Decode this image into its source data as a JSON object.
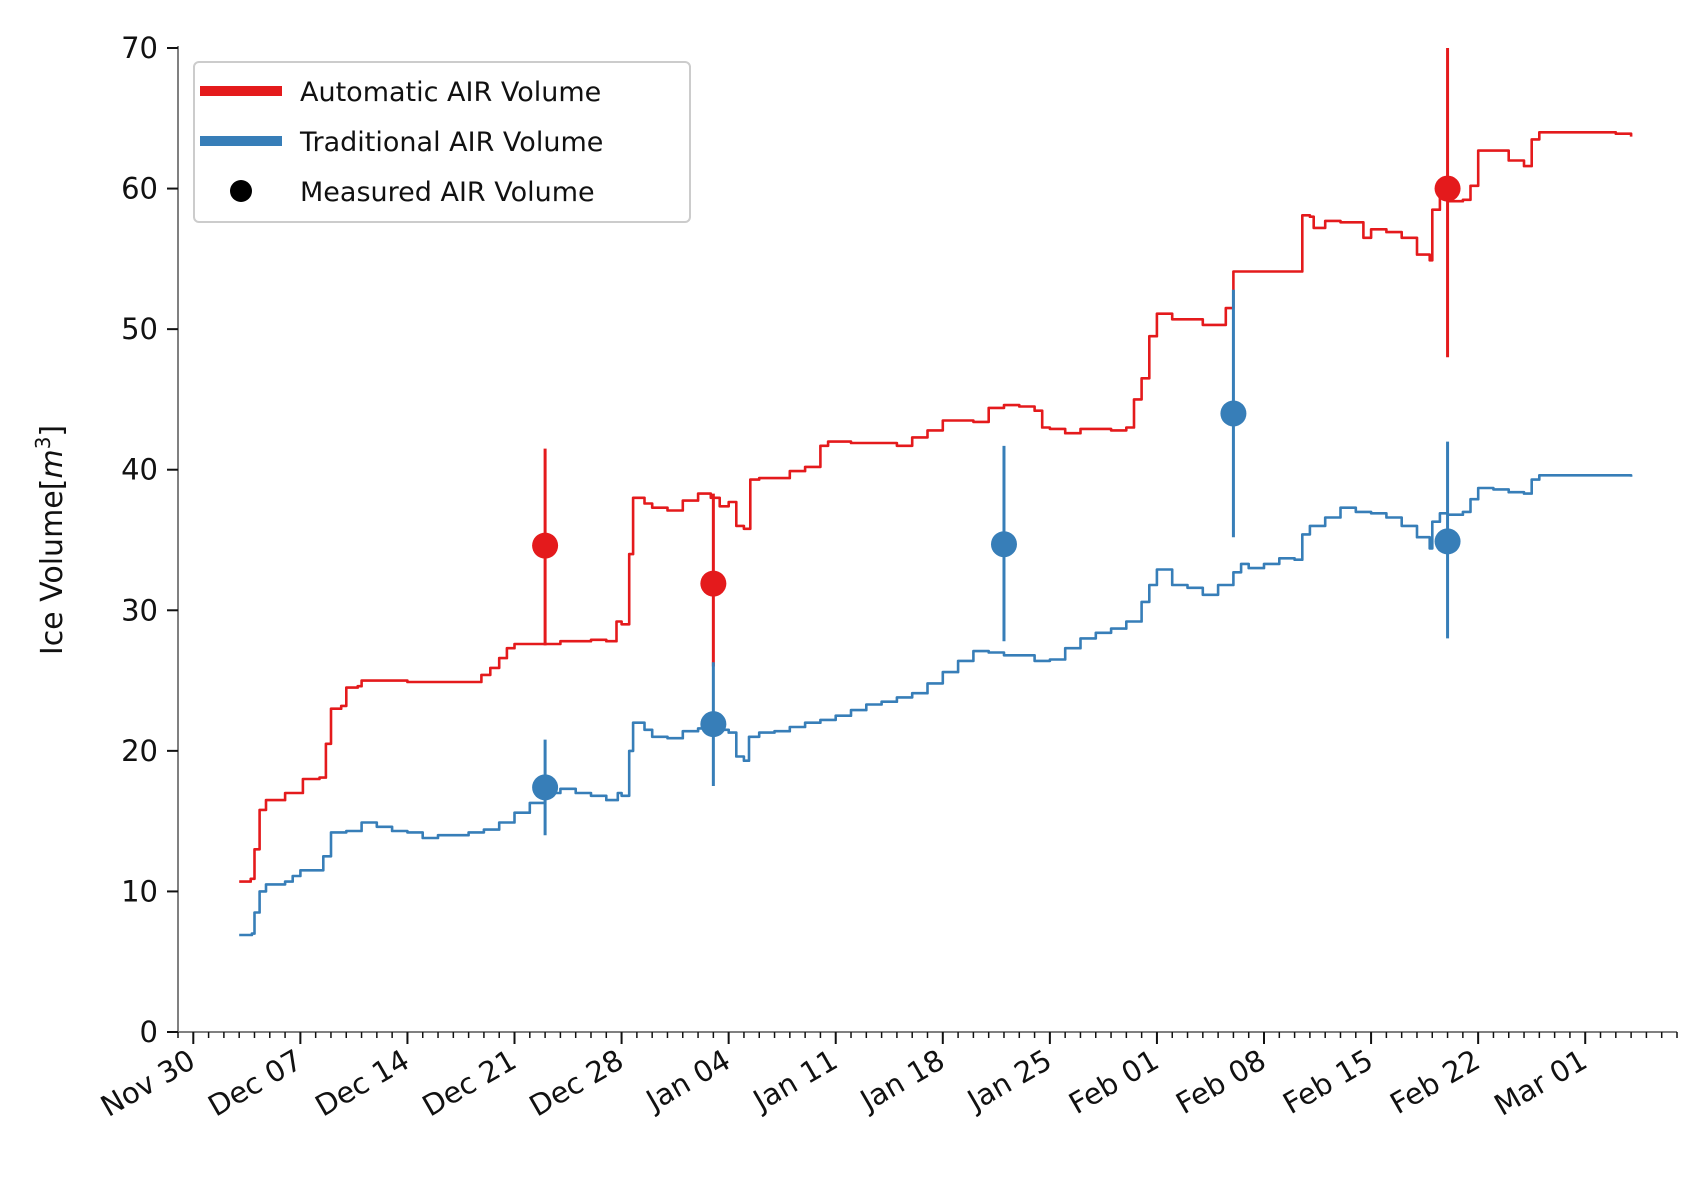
{
  "chart_data": {
    "type": "line",
    "title": "",
    "xlabel": "",
    "ylabel": "Ice Volume[",
    "ylabel_math": "m",
    "ylabel_sup": "3",
    "ylabel_close": "]",
    "ylim": [
      0,
      70
    ],
    "xlim": [
      "2020-11-29",
      "2021-03-07"
    ],
    "yticks": [
      0,
      10,
      20,
      30,
      40,
      50,
      60,
      70
    ],
    "xticks": [
      {
        "date": "2020-11-30",
        "label": "Nov 30"
      },
      {
        "date": "2020-12-07",
        "label": "Dec 07"
      },
      {
        "date": "2020-12-14",
        "label": "Dec 14"
      },
      {
        "date": "2020-12-21",
        "label": "Dec 21"
      },
      {
        "date": "2020-12-28",
        "label": "Dec 28"
      },
      {
        "date": "2021-01-04",
        "label": "Jan 04"
      },
      {
        "date": "2021-01-11",
        "label": "Jan 11"
      },
      {
        "date": "2021-01-18",
        "label": "Jan 18"
      },
      {
        "date": "2021-01-25",
        "label": "Jan 25"
      },
      {
        "date": "2021-02-01",
        "label": "Feb 01"
      },
      {
        "date": "2021-02-08",
        "label": "Feb 08"
      },
      {
        "date": "2021-02-15",
        "label": "Feb 15"
      },
      {
        "date": "2021-02-22",
        "label": "Feb 22"
      },
      {
        "date": "2021-03-01",
        "label": "Mar 01"
      }
    ],
    "grid": false,
    "legend_position": "top-left",
    "series": [
      {
        "name": "Automatic AIR Volume",
        "color": "#e41a1c",
        "step": true,
        "points": [
          [
            "2020-12-03",
            10.7
          ],
          [
            "2020-12-03 18:00",
            10.9
          ],
          [
            "2020-12-04",
            13
          ],
          [
            "2020-12-04 08:00",
            15.8
          ],
          [
            "2020-12-04 18:00",
            16.5
          ],
          [
            "2020-12-05 20:00",
            16.5
          ],
          [
            "2020-12-06",
            17
          ],
          [
            "2020-12-06 18:00",
            17
          ],
          [
            "2020-12-07 04:00",
            18
          ],
          [
            "2020-12-08 06:00",
            18.1
          ],
          [
            "2020-12-08 16:00",
            20.5
          ],
          [
            "2020-12-09",
            23
          ],
          [
            "2020-12-09 16:00",
            23.2
          ],
          [
            "2020-12-10",
            24.5
          ],
          [
            "2020-12-10 18:00",
            24.6
          ],
          [
            "2020-12-11",
            25
          ],
          [
            "2020-12-12",
            25
          ],
          [
            "2020-12-14",
            24.9
          ],
          [
            "2020-12-16",
            24.9
          ],
          [
            "2020-12-18",
            24.9
          ],
          [
            "2020-12-18 20:00",
            25.4
          ],
          [
            "2020-12-19 10:00",
            25.9
          ],
          [
            "2020-12-20",
            26.6
          ],
          [
            "2020-12-20 12:00",
            27.3
          ],
          [
            "2020-12-21",
            27.6
          ],
          [
            "2020-12-23",
            27.6
          ],
          [
            "2020-12-24",
            27.8
          ],
          [
            "2020-12-25",
            27.8
          ],
          [
            "2020-12-26",
            27.9
          ],
          [
            "2020-12-27",
            27.8
          ],
          [
            "2020-12-27 16:00",
            29.2
          ],
          [
            "2020-12-28",
            29
          ],
          [
            "2020-12-28 12:00",
            34
          ],
          [
            "2020-12-28 18:00",
            38
          ],
          [
            "2020-12-29 12:00",
            37.6
          ],
          [
            "2020-12-30",
            37.3
          ],
          [
            "2020-12-31",
            37.1
          ],
          [
            "2021-01-01",
            37.8
          ],
          [
            "2021-01-02",
            38.3
          ],
          [
            "2021-01-02 20:00",
            38
          ],
          [
            "2021-01-03 10:00",
            37.4
          ],
          [
            "2021-01-04",
            37.7
          ],
          [
            "2021-01-04 12:00",
            36
          ],
          [
            "2021-01-05",
            35.8
          ],
          [
            "2021-01-05 10:00",
            39.3
          ],
          [
            "2021-01-06",
            39.4
          ],
          [
            "2021-01-07",
            39.4
          ],
          [
            "2021-01-08",
            39.9
          ],
          [
            "2021-01-09",
            40.2
          ],
          [
            "2021-01-10",
            41.7
          ],
          [
            "2021-01-10 12:00",
            42
          ],
          [
            "2021-01-12",
            41.9
          ],
          [
            "2021-01-14",
            41.9
          ],
          [
            "2021-01-15",
            41.7
          ],
          [
            "2021-01-16",
            42.3
          ],
          [
            "2021-01-17",
            42.8
          ],
          [
            "2021-01-18",
            43.5
          ],
          [
            "2021-01-19",
            43.5
          ],
          [
            "2021-01-20",
            43.4
          ],
          [
            "2021-01-21",
            44.4
          ],
          [
            "2021-01-22",
            44.6
          ],
          [
            "2021-01-23",
            44.5
          ],
          [
            "2021-01-24",
            44.2
          ],
          [
            "2021-01-24 12:00",
            43
          ],
          [
            "2021-01-25",
            42.9
          ],
          [
            "2021-01-26",
            42.6
          ],
          [
            "2021-01-27",
            42.9
          ],
          [
            "2021-01-28",
            42.9
          ],
          [
            "2021-01-29",
            42.8
          ],
          [
            "2021-01-30",
            43
          ],
          [
            "2021-01-30 12:00",
            45
          ],
          [
            "2021-01-31",
            46.5
          ],
          [
            "2021-01-31 12:00",
            49.5
          ],
          [
            "2021-02-01",
            51.1
          ],
          [
            "2021-02-02",
            50.7
          ],
          [
            "2021-02-03",
            50.7
          ],
          [
            "2021-02-04",
            50.3
          ],
          [
            "2021-02-05",
            50.3
          ],
          [
            "2021-02-05 12:00",
            51.5
          ],
          [
            "2021-02-06",
            54.1
          ],
          [
            "2021-02-08",
            54.1
          ],
          [
            "2021-02-09",
            54.1
          ],
          [
            "2021-02-10",
            54.1
          ],
          [
            "2021-02-10 12:00",
            58.1
          ],
          [
            "2021-02-11",
            58
          ],
          [
            "2021-02-11 06:00",
            57.2
          ],
          [
            "2021-02-12",
            57.7
          ],
          [
            "2021-02-13",
            57.6
          ],
          [
            "2021-02-14",
            57.6
          ],
          [
            "2021-02-14 12:00",
            56.5
          ],
          [
            "2021-02-15",
            57.1
          ],
          [
            "2021-02-16",
            56.9
          ],
          [
            "2021-02-17",
            56.5
          ],
          [
            "2021-02-18",
            55.3
          ],
          [
            "2021-02-18 20:00",
            54.9
          ],
          [
            "2021-02-19",
            58.5
          ],
          [
            "2021-02-19 12:00",
            59.5
          ],
          [
            "2021-02-20",
            59.1
          ],
          [
            "2021-02-21",
            59.2
          ],
          [
            "2021-02-21 12:00",
            60.2
          ],
          [
            "2021-02-22",
            62.7
          ],
          [
            "2021-02-23",
            62.7
          ],
          [
            "2021-02-24",
            62
          ],
          [
            "2021-02-25",
            61.6
          ],
          [
            "2021-02-25 12:00",
            63.5
          ],
          [
            "2021-02-26",
            64
          ],
          [
            "2021-02-28",
            64
          ],
          [
            "2021-03-02",
            64
          ],
          [
            "2021-03-03",
            63.9
          ],
          [
            "2021-03-04",
            63.7
          ]
        ]
      },
      {
        "name": "Traditional AIR Volume",
        "color": "#377eb8",
        "step": true,
        "points": [
          [
            "2020-12-03",
            6.9
          ],
          [
            "2020-12-03 20:00",
            7
          ],
          [
            "2020-12-04",
            8.5
          ],
          [
            "2020-12-04 08:00",
            10
          ],
          [
            "2020-12-04 18:00",
            10.5
          ],
          [
            "2020-12-05 12:00",
            10.5
          ],
          [
            "2020-12-06",
            10.7
          ],
          [
            "2020-12-06 12:00",
            11.1
          ],
          [
            "2020-12-07",
            11.5
          ],
          [
            "2020-12-08",
            11.5
          ],
          [
            "2020-12-08 12:00",
            12.5
          ],
          [
            "2020-12-09",
            14.2
          ],
          [
            "2020-12-10",
            14.3
          ],
          [
            "2020-12-11",
            14.9
          ],
          [
            "2020-12-12",
            14.6
          ],
          [
            "2020-12-13",
            14.3
          ],
          [
            "2020-12-14",
            14.2
          ],
          [
            "2020-12-15",
            13.8
          ],
          [
            "2020-12-16",
            14
          ],
          [
            "2020-12-17",
            14
          ],
          [
            "2020-12-18",
            14.2
          ],
          [
            "2020-12-19",
            14.4
          ],
          [
            "2020-12-20",
            14.9
          ],
          [
            "2020-12-21",
            15.6
          ],
          [
            "2020-12-22",
            16.3
          ],
          [
            "2020-12-23",
            17
          ],
          [
            "2020-12-24",
            17.3
          ],
          [
            "2020-12-25",
            17
          ],
          [
            "2020-12-26",
            16.8
          ],
          [
            "2020-12-27",
            16.5
          ],
          [
            "2020-12-27 18:00",
            17
          ],
          [
            "2020-12-28",
            16.8
          ],
          [
            "2020-12-28 12:00",
            20
          ],
          [
            "2020-12-28 18:00",
            22
          ],
          [
            "2020-12-29 12:00",
            21.5
          ],
          [
            "2020-12-30",
            21
          ],
          [
            "2020-12-31",
            20.9
          ],
          [
            "2021-01-01",
            21.4
          ],
          [
            "2021-01-02",
            21.6
          ],
          [
            "2021-01-03",
            21.5
          ],
          [
            "2021-01-04",
            21.3
          ],
          [
            "2021-01-04 12:00",
            19.6
          ],
          [
            "2021-01-05",
            19.3
          ],
          [
            "2021-01-05 08:00",
            21
          ],
          [
            "2021-01-06",
            21.3
          ],
          [
            "2021-01-07",
            21.4
          ],
          [
            "2021-01-08",
            21.7
          ],
          [
            "2021-01-09",
            22
          ],
          [
            "2021-01-10",
            22.2
          ],
          [
            "2021-01-11",
            22.5
          ],
          [
            "2021-01-12",
            22.9
          ],
          [
            "2021-01-13",
            23.3
          ],
          [
            "2021-01-14",
            23.5
          ],
          [
            "2021-01-15",
            23.8
          ],
          [
            "2021-01-16",
            24.1
          ],
          [
            "2021-01-17",
            24.8
          ],
          [
            "2021-01-18",
            25.6
          ],
          [
            "2021-01-19",
            26.4
          ],
          [
            "2021-01-20",
            27.1
          ],
          [
            "2021-01-21",
            27
          ],
          [
            "2021-01-22",
            26.8
          ],
          [
            "2021-01-23",
            26.8
          ],
          [
            "2021-01-24",
            26.4
          ],
          [
            "2021-01-25",
            26.5
          ],
          [
            "2021-01-26",
            27.3
          ],
          [
            "2021-01-27",
            28
          ],
          [
            "2021-01-28",
            28.4
          ],
          [
            "2021-01-29",
            28.7
          ],
          [
            "2021-01-30",
            29.2
          ],
          [
            "2021-01-31",
            30.6
          ],
          [
            "2021-01-31 12:00",
            31.8
          ],
          [
            "2021-02-01",
            32.9
          ],
          [
            "2021-02-02",
            31.8
          ],
          [
            "2021-02-03",
            31.6
          ],
          [
            "2021-02-04",
            31.1
          ],
          [
            "2021-02-05",
            31.8
          ],
          [
            "2021-02-06",
            32.7
          ],
          [
            "2021-02-06 12:00",
            33.3
          ],
          [
            "2021-02-07",
            33
          ],
          [
            "2021-02-08",
            33.3
          ],
          [
            "2021-02-09",
            33.7
          ],
          [
            "2021-02-10",
            33.6
          ],
          [
            "2021-02-10 12:00",
            35.4
          ],
          [
            "2021-02-11",
            36
          ],
          [
            "2021-02-12",
            36.6
          ],
          [
            "2021-02-13",
            37.3
          ],
          [
            "2021-02-14",
            37
          ],
          [
            "2021-02-15",
            36.9
          ],
          [
            "2021-02-16",
            36.6
          ],
          [
            "2021-02-17",
            36
          ],
          [
            "2021-02-18",
            35.2
          ],
          [
            "2021-02-18 20:00",
            34.4
          ],
          [
            "2021-02-19",
            36.3
          ],
          [
            "2021-02-19 12:00",
            36.9
          ],
          [
            "2021-02-20",
            36.8
          ],
          [
            "2021-02-21",
            37
          ],
          [
            "2021-02-21 12:00",
            37.9
          ],
          [
            "2021-02-22",
            38.7
          ],
          [
            "2021-02-23",
            38.6
          ],
          [
            "2021-02-24",
            38.4
          ],
          [
            "2021-02-25",
            38.3
          ],
          [
            "2021-02-25 12:00",
            39.3
          ],
          [
            "2021-02-26",
            39.6
          ],
          [
            "2021-02-28",
            39.6
          ],
          [
            "2021-03-02",
            39.6
          ],
          [
            "2021-03-03",
            39.6
          ],
          [
            "2021-03-04",
            39.5
          ]
        ]
      }
    ],
    "measurements": {
      "name": "Measured AIR Volume",
      "legend_color": "#000000",
      "points": [
        {
          "date": "2020-12-23",
          "value": 34.6,
          "low": 27.5,
          "high": 41.5,
          "color": "#e41a1c"
        },
        {
          "date": "2021-01-03",
          "value": 31.9,
          "low": 26,
          "high": 38.3,
          "color": "#e41a1c"
        },
        {
          "date": "2021-02-20",
          "value": 60,
          "low": 48,
          "high": 70,
          "color": "#e41a1c"
        },
        {
          "date": "2020-12-23",
          "value": 17.4,
          "low": 14,
          "high": 20.8,
          "color": "#377eb8"
        },
        {
          "date": "2021-01-03",
          "value": 21.9,
          "low": 17.5,
          "high": 26.3,
          "color": "#377eb8"
        },
        {
          "date": "2021-01-22",
          "value": 34.7,
          "low": 27.8,
          "high": 41.7,
          "color": "#377eb8"
        },
        {
          "date": "2021-02-06",
          "value": 44,
          "low": 35.2,
          "high": 52.8,
          "color": "#377eb8"
        },
        {
          "date": "2021-02-20",
          "value": 34.9,
          "low": 28,
          "high": 42,
          "color": "#377eb8"
        }
      ]
    }
  }
}
